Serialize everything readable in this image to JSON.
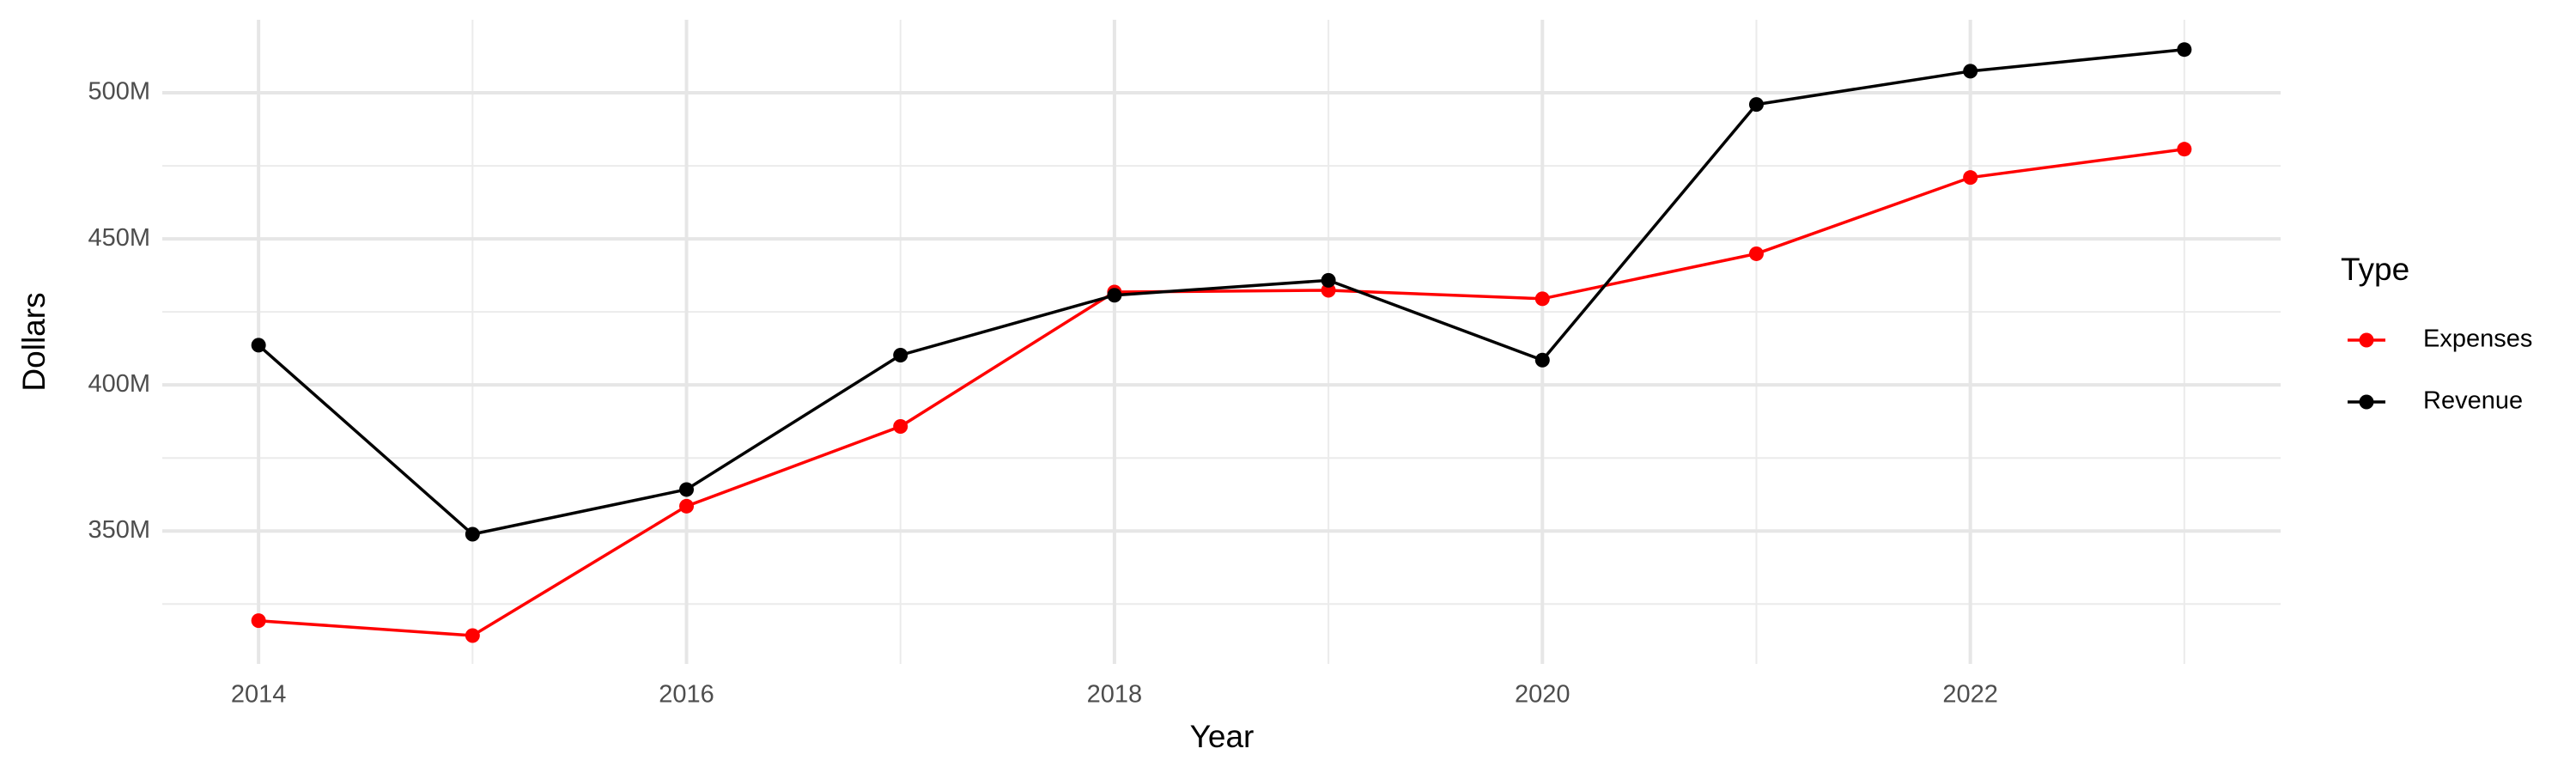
{
  "chart_data": {
    "type": "line",
    "x_label": "Year",
    "y_label": "Dollars",
    "legend_title": "Type",
    "legend_position": "right",
    "grid": true,
    "x": [
      2014,
      2015,
      2016,
      2017,
      2018,
      2019,
      2020,
      2021,
      2022,
      2023
    ],
    "series": [
      {
        "name": "Expenses",
        "color": "#ff0000",
        "values": [
          319300000,
          314200000,
          358500000,
          385800000,
          431800000,
          432400000,
          429500000,
          444900000,
          471000000,
          480700000
        ]
      },
      {
        "name": "Revenue",
        "color": "#000000",
        "values": [
          413600000,
          348900000,
          364200000,
          410200000,
          430700000,
          435800000,
          408500000,
          496000000,
          507400000,
          514800000
        ]
      }
    ],
    "xlim": [
      2013.55,
      2023.45
    ],
    "xticks": [
      2014,
      2016,
      2018,
      2020,
      2022
    ],
    "minor_xticks": [
      2015,
      2017,
      2019,
      2021,
      2023
    ],
    "ylim": [
      304500000,
      525000000
    ],
    "yticks": [
      {
        "value": 350000000,
        "label": "350M"
      },
      {
        "value": 400000000,
        "label": "400M"
      },
      {
        "value": 450000000,
        "label": "450M"
      },
      {
        "value": 500000000,
        "label": "500M"
      }
    ],
    "minor_yticks": [
      325000000,
      375000000,
      425000000,
      475000000
    ]
  }
}
